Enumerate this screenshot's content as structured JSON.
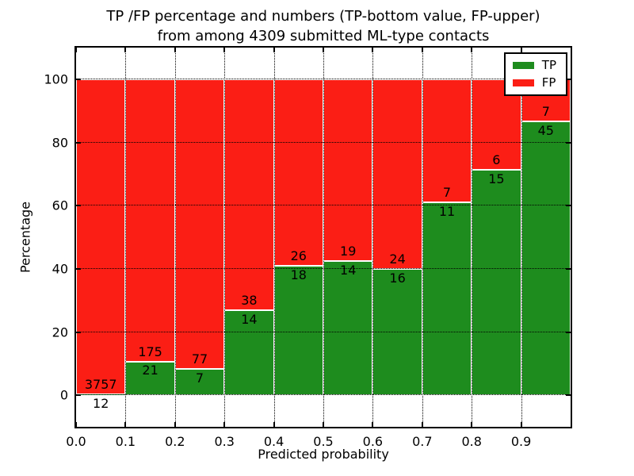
{
  "chart_data": {
    "type": "bar",
    "stacked": true,
    "normalized": "percent",
    "title_lines": [
      "TP /FP percentage and numbers (TP-bottom value, FP-upper)",
      "from among 4309 submitted ML-type contacts"
    ],
    "xlabel": "Predicted probability",
    "ylabel": "Percentage",
    "bin_start": 0.0,
    "bin_width": 0.1,
    "categories": [
      "0.0-0.1",
      "0.1-0.2",
      "0.2-0.3",
      "0.3-0.4",
      "0.4-0.5",
      "0.5-0.6",
      "0.6-0.7",
      "0.7-0.8",
      "0.8-0.9",
      "0.9-1.0"
    ],
    "series": [
      {
        "name": "TP",
        "color": "#1e8c1e",
        "position": "bottom",
        "counts": [
          12,
          21,
          7,
          14,
          18,
          14,
          16,
          11,
          15,
          45
        ]
      },
      {
        "name": "FP",
        "color": "#fb1e15",
        "position": "top",
        "counts": [
          3757,
          175,
          77,
          38,
          26,
          19,
          24,
          7,
          6,
          7
        ]
      }
    ],
    "x_ticks": [
      "0.0",
      "0.1",
      "0.2",
      "0.3",
      "0.4",
      "0.5",
      "0.6",
      "0.7",
      "0.8",
      "0.9"
    ],
    "y_ticks": [
      0,
      20,
      40,
      60,
      80,
      100
    ],
    "x_gridlines": [
      0.1,
      0.2,
      0.3,
      0.4,
      0.5,
      0.6,
      0.7,
      0.8,
      0.9
    ],
    "y_gridlines": [
      0,
      20,
      40,
      60,
      80,
      100
    ],
    "xlim": [
      0.0,
      1.0
    ],
    "ylim": [
      -10,
      110
    ],
    "grid": true,
    "grid_style": "dotted",
    "bar_edge_color": "#ffffff",
    "legend_position": "upper right",
    "legend_entries": [
      "TP",
      "FP"
    ]
  }
}
